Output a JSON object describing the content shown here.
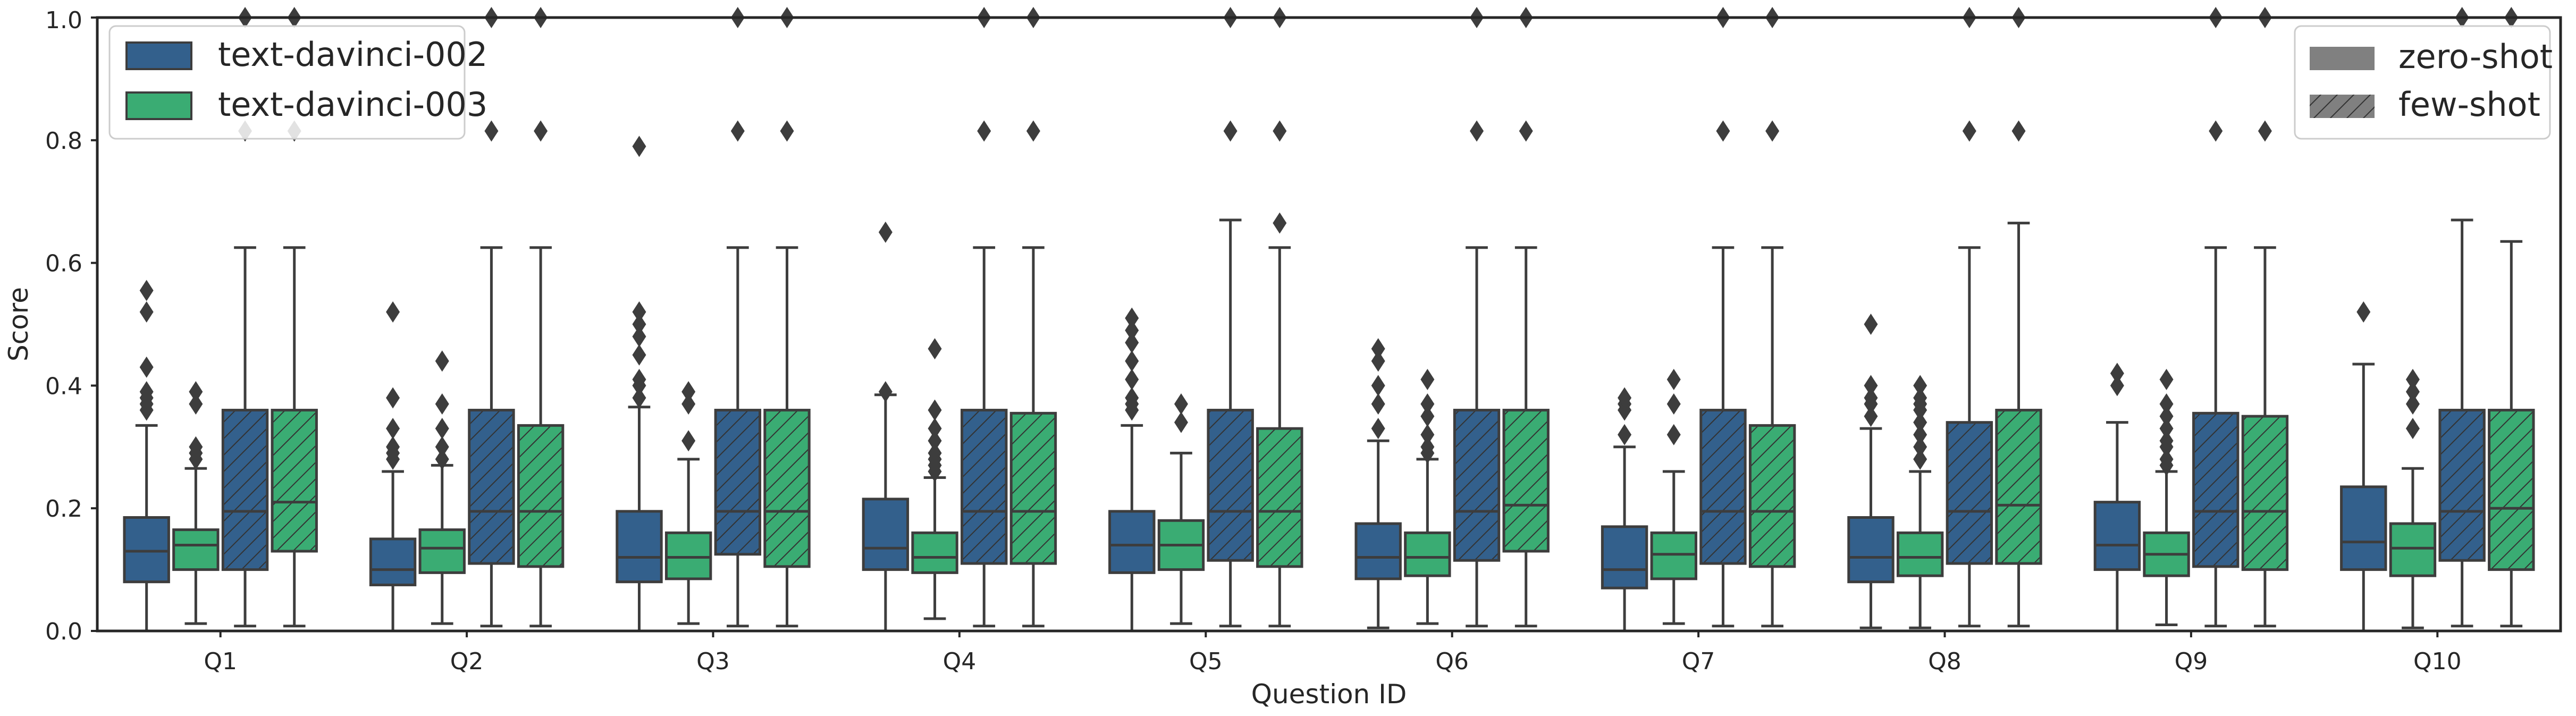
{
  "chart_data": {
    "type": "box",
    "xlabel": "Question ID",
    "ylabel": "Score",
    "ylim": [
      0.0,
      1.0
    ],
    "y_ticks": [
      "0.0",
      "0.2",
      "0.4",
      "0.6",
      "0.8",
      "1.0"
    ],
    "categories": [
      "Q1",
      "Q2",
      "Q3",
      "Q4",
      "Q5",
      "Q6",
      "Q7",
      "Q8",
      "Q9",
      "Q10"
    ],
    "grid": false,
    "legend_models": {
      "placement": "top-left",
      "items": [
        {
          "label": "text-davinci-002",
          "color": "#33608c"
        },
        {
          "label": "text-davinci-003",
          "color": "#3aac73"
        }
      ]
    },
    "legend_setting": {
      "placement": "top-right",
      "items": [
        {
          "label": "zero-shot",
          "pattern": "solid"
        },
        {
          "label": "few-shot",
          "pattern": "hatch"
        }
      ]
    },
    "series": [
      {
        "model": "text-davinci-002",
        "setting": "zero-shot",
        "color": "#33608c",
        "hatch": false,
        "stats": [
          {
            "wl": 0.0,
            "q1": 0.08,
            "med": 0.13,
            "q3": 0.185,
            "wh": 0.335,
            "out": [
              0.36,
              0.37,
              0.38,
              0.39,
              0.43,
              0.52,
              0.555
            ]
          },
          {
            "wl": 0.0,
            "q1": 0.075,
            "med": 0.1,
            "q3": 0.15,
            "wh": 0.26,
            "out": [
              0.28,
              0.29,
              0.3,
              0.33,
              0.38,
              0.52
            ]
          },
          {
            "wl": 0.0,
            "q1": 0.08,
            "med": 0.12,
            "q3": 0.195,
            "wh": 0.365,
            "out": [
              0.38,
              0.4,
              0.41,
              0.45,
              0.48,
              0.5,
              0.52,
              0.79
            ]
          },
          {
            "wl": 0.0,
            "q1": 0.1,
            "med": 0.135,
            "q3": 0.215,
            "wh": 0.385,
            "out": [
              0.39,
              0.65
            ]
          },
          {
            "wl": 0.0,
            "q1": 0.095,
            "med": 0.14,
            "q3": 0.195,
            "wh": 0.335,
            "out": [
              0.36,
              0.37,
              0.38,
              0.41,
              0.44,
              0.47,
              0.49,
              0.51
            ]
          },
          {
            "wl": 0.005,
            "q1": 0.085,
            "med": 0.12,
            "q3": 0.175,
            "wh": 0.31,
            "out": [
              0.33,
              0.37,
              0.4,
              0.44,
              0.46
            ]
          },
          {
            "wl": 0.0,
            "q1": 0.07,
            "med": 0.1,
            "q3": 0.17,
            "wh": 0.3,
            "out": [
              0.32,
              0.36,
              0.37,
              0.38
            ]
          },
          {
            "wl": 0.005,
            "q1": 0.08,
            "med": 0.12,
            "q3": 0.185,
            "wh": 0.33,
            "out": [
              0.35,
              0.37,
              0.38,
              0.4,
              0.5
            ]
          },
          {
            "wl": 0.0,
            "q1": 0.1,
            "med": 0.14,
            "q3": 0.21,
            "wh": 0.34,
            "out": [
              0.4,
              0.42
            ]
          },
          {
            "wl": 0.0,
            "q1": 0.1,
            "med": 0.145,
            "q3": 0.235,
            "wh": 0.435,
            "out": [
              0.52
            ]
          }
        ]
      },
      {
        "model": "text-davinci-003",
        "setting": "zero-shot",
        "color": "#3aac73",
        "hatch": false,
        "stats": [
          {
            "wl": 0.012,
            "q1": 0.1,
            "med": 0.14,
            "q3": 0.165,
            "wh": 0.265,
            "out": [
              0.28,
              0.29,
              0.3,
              0.37,
              0.39
            ]
          },
          {
            "wl": 0.012,
            "q1": 0.095,
            "med": 0.135,
            "q3": 0.165,
            "wh": 0.27,
            "out": [
              0.28,
              0.3,
              0.33,
              0.37,
              0.44
            ]
          },
          {
            "wl": 0.012,
            "q1": 0.085,
            "med": 0.12,
            "q3": 0.16,
            "wh": 0.28,
            "out": [
              0.31,
              0.37,
              0.39
            ]
          },
          {
            "wl": 0.02,
            "q1": 0.095,
            "med": 0.12,
            "q3": 0.16,
            "wh": 0.25,
            "out": [
              0.26,
              0.27,
              0.28,
              0.29,
              0.31,
              0.33,
              0.36,
              0.46
            ]
          },
          {
            "wl": 0.012,
            "q1": 0.1,
            "med": 0.14,
            "q3": 0.18,
            "wh": 0.29,
            "out": [
              0.34,
              0.37
            ]
          },
          {
            "wl": 0.012,
            "q1": 0.09,
            "med": 0.12,
            "q3": 0.16,
            "wh": 0.28,
            "out": [
              0.29,
              0.3,
              0.32,
              0.35,
              0.37,
              0.41
            ]
          },
          {
            "wl": 0.012,
            "q1": 0.085,
            "med": 0.125,
            "q3": 0.16,
            "wh": 0.26,
            "out": [
              0.32,
              0.37,
              0.41
            ]
          },
          {
            "wl": 0.005,
            "q1": 0.09,
            "med": 0.12,
            "q3": 0.16,
            "wh": 0.26,
            "out": [
              0.28,
              0.3,
              0.32,
              0.34,
              0.36,
              0.37,
              0.38,
              0.4
            ]
          },
          {
            "wl": 0.01,
            "q1": 0.09,
            "med": 0.125,
            "q3": 0.16,
            "wh": 0.26,
            "out": [
              0.27,
              0.28,
              0.3,
              0.31,
              0.33,
              0.35,
              0.37,
              0.41
            ]
          },
          {
            "wl": 0.005,
            "q1": 0.09,
            "med": 0.135,
            "q3": 0.175,
            "wh": 0.265,
            "out": [
              0.33,
              0.37,
              0.39,
              0.41
            ]
          }
        ]
      },
      {
        "model": "text-davinci-002",
        "setting": "few-shot",
        "color": "#33608c",
        "hatch": true,
        "stats": [
          {
            "wl": 0.008,
            "q1": 0.1,
            "med": 0.195,
            "q3": 0.36,
            "wh": 0.625,
            "out": [
              0.815,
              1.0
            ]
          },
          {
            "wl": 0.008,
            "q1": 0.11,
            "med": 0.195,
            "q3": 0.36,
            "wh": 0.625,
            "out": [
              0.815,
              1.0
            ]
          },
          {
            "wl": 0.008,
            "q1": 0.125,
            "med": 0.195,
            "q3": 0.36,
            "wh": 0.625,
            "out": [
              0.815,
              1.0
            ]
          },
          {
            "wl": 0.008,
            "q1": 0.11,
            "med": 0.195,
            "q3": 0.36,
            "wh": 0.625,
            "out": [
              0.815,
              1.0
            ]
          },
          {
            "wl": 0.008,
            "q1": 0.115,
            "med": 0.195,
            "q3": 0.36,
            "wh": 0.67,
            "out": [
              0.815,
              1.0
            ]
          },
          {
            "wl": 0.008,
            "q1": 0.115,
            "med": 0.195,
            "q3": 0.36,
            "wh": 0.625,
            "out": [
              0.815,
              1.0
            ]
          },
          {
            "wl": 0.008,
            "q1": 0.11,
            "med": 0.195,
            "q3": 0.36,
            "wh": 0.625,
            "out": [
              0.815,
              1.0
            ]
          },
          {
            "wl": 0.008,
            "q1": 0.11,
            "med": 0.195,
            "q3": 0.34,
            "wh": 0.625,
            "out": [
              0.815,
              1.0
            ]
          },
          {
            "wl": 0.008,
            "q1": 0.105,
            "med": 0.195,
            "q3": 0.355,
            "wh": 0.625,
            "out": [
              0.815,
              1.0
            ]
          },
          {
            "wl": 0.008,
            "q1": 0.115,
            "med": 0.195,
            "q3": 0.36,
            "wh": 0.67,
            "out": [
              1.0
            ]
          }
        ]
      },
      {
        "model": "text-davinci-003",
        "setting": "few-shot",
        "color": "#3aac73",
        "hatch": true,
        "stats": [
          {
            "wl": 0.008,
            "q1": 0.13,
            "med": 0.21,
            "q3": 0.36,
            "wh": 0.625,
            "out": [
              0.815,
              1.0
            ]
          },
          {
            "wl": 0.008,
            "q1": 0.105,
            "med": 0.195,
            "q3": 0.335,
            "wh": 0.625,
            "out": [
              0.815,
              1.0
            ]
          },
          {
            "wl": 0.008,
            "q1": 0.105,
            "med": 0.195,
            "q3": 0.36,
            "wh": 0.625,
            "out": [
              0.815,
              1.0
            ]
          },
          {
            "wl": 0.008,
            "q1": 0.11,
            "med": 0.195,
            "q3": 0.355,
            "wh": 0.625,
            "out": [
              0.815,
              1.0
            ]
          },
          {
            "wl": 0.008,
            "q1": 0.105,
            "med": 0.195,
            "q3": 0.33,
            "wh": 0.625,
            "out": [
              0.665,
              0.815,
              1.0
            ]
          },
          {
            "wl": 0.008,
            "q1": 0.13,
            "med": 0.205,
            "q3": 0.36,
            "wh": 0.625,
            "out": [
              0.815,
              1.0
            ]
          },
          {
            "wl": 0.008,
            "q1": 0.105,
            "med": 0.195,
            "q3": 0.335,
            "wh": 0.625,
            "out": [
              0.815,
              1.0
            ]
          },
          {
            "wl": 0.008,
            "q1": 0.11,
            "med": 0.205,
            "q3": 0.36,
            "wh": 0.665,
            "out": [
              0.815,
              1.0
            ]
          },
          {
            "wl": 0.008,
            "q1": 0.1,
            "med": 0.195,
            "q3": 0.35,
            "wh": 0.625,
            "out": [
              0.815,
              1.0
            ]
          },
          {
            "wl": 0.008,
            "q1": 0.1,
            "med": 0.2,
            "q3": 0.36,
            "wh": 0.635,
            "out": [
              1.0
            ]
          }
        ]
      }
    ]
  }
}
